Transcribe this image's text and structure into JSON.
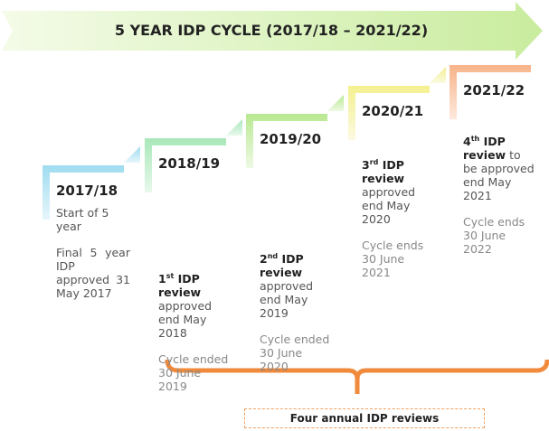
{
  "title": "5 YEAR IDP CYCLE (2017/18 – 2021/22)",
  "steps": [
    {
      "year": "2017/18",
      "text": "Start of 5 year",
      "note": "Final 5 year IDP approved 31 May 2017"
    },
    {
      "year": "2018/19",
      "number": "1",
      "suffix": "st",
      "bold": "IDP review",
      "text": "approved end May 2018",
      "note": "Cycle ended 30 June 2019"
    },
    {
      "year": "2019/20",
      "number": "2",
      "suffix": "nd",
      "bold": "IDP review",
      "text": "approved end May 2019",
      "note": "Cycle ended 30 June 2020"
    },
    {
      "year": "2020/21",
      "number": "3",
      "suffix": "rd",
      "bold": "IDP review",
      "text": "approved end May 2020",
      "note": "Cycle ends 30 June 2021"
    },
    {
      "year": "2021/22",
      "number": "4",
      "suffix": "th",
      "bold": "IDP review",
      "text": "to be approved end May 2021",
      "note": "Cycle ends 30 June 2022"
    }
  ],
  "bracket_label": "Four annual IDP reviews"
}
